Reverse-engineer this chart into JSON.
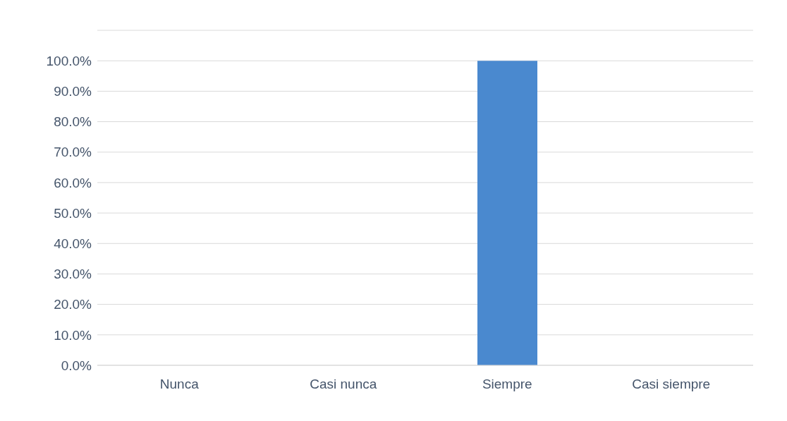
{
  "chart_data": {
    "type": "bar",
    "categories": [
      "Nunca",
      "Casi nunca",
      "Siempre",
      "Casi siempre"
    ],
    "values": [
      0,
      0,
      100,
      0
    ],
    "color": "#4a89cf",
    "ylim": [
      0,
      110
    ],
    "yticks": [
      {
        "value": 0,
        "label": "0.0%"
      },
      {
        "value": 10,
        "label": "10.0%"
      },
      {
        "value": 20,
        "label": "20.0%"
      },
      {
        "value": 30,
        "label": "30.0%"
      },
      {
        "value": 40,
        "label": "40.0%"
      },
      {
        "value": 50,
        "label": "50.0%"
      },
      {
        "value": 60,
        "label": "60.0%"
      },
      {
        "value": 70,
        "label": "70.0%"
      },
      {
        "value": 80,
        "label": "80.0%"
      },
      {
        "value": 90,
        "label": "90.0%"
      },
      {
        "value": 100,
        "label": "100.0%"
      },
      {
        "value": 110,
        "label": null
      }
    ],
    "grid": "y"
  }
}
